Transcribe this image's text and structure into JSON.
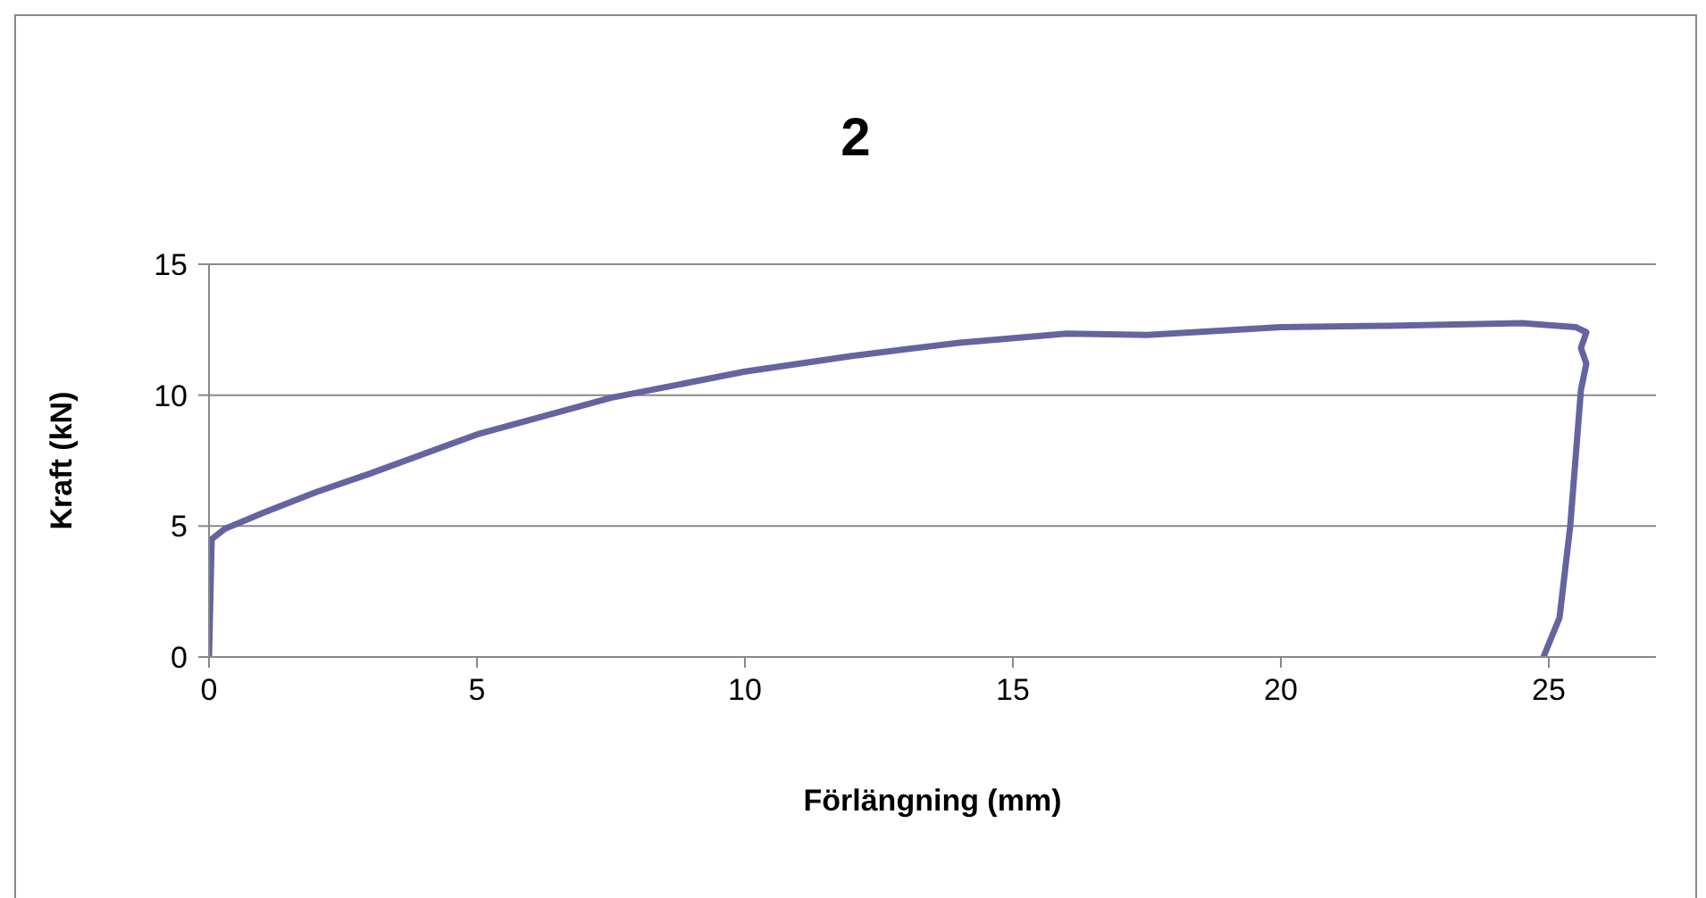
{
  "chart_data": {
    "type": "line",
    "title": "2",
    "xlabel": "Förlängning (mm)",
    "ylabel": "Kraft (kN)",
    "xlim": [
      0,
      27
    ],
    "xticks": [
      0,
      5,
      10,
      15,
      20,
      25
    ],
    "ylim": [
      0,
      15
    ],
    "yticks": [
      0,
      5,
      10,
      15
    ],
    "grid": "y",
    "marker": "none",
    "line_style": "solid",
    "series": [
      {
        "color": "#6464a0",
        "x": [
          0,
          0.05,
          0.3,
          1,
          2,
          3,
          5,
          7.5,
          10,
          12,
          14,
          16,
          17.5,
          20,
          22,
          24.5,
          25.5,
          25.7,
          25.6,
          25.7,
          25.6,
          25.4,
          25.2,
          24.9
        ],
        "values": [
          0,
          4.5,
          4.9,
          5.5,
          6.3,
          7.0,
          8.5,
          9.9,
          10.9,
          11.5,
          12.0,
          12.35,
          12.3,
          12.6,
          12.65,
          12.75,
          12.6,
          12.4,
          11.8,
          11.2,
          10.2,
          5,
          1.5,
          0
        ]
      }
    ]
  }
}
